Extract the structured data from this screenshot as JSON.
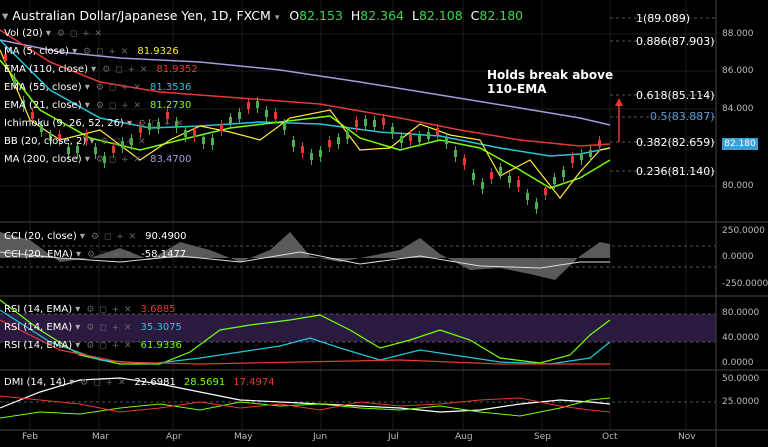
{
  "header": {
    "symbol": "Australian Dollar/Japanese Yen, 1D, FXCM",
    "o_label": "O",
    "o": "82.153",
    "h_label": "H",
    "h": "82.364",
    "l_label": "L",
    "l": "82.108",
    "c_label": "C",
    "c": "82.180"
  },
  "indicators": [
    {
      "label": "Vol (20)",
      "value": ""
    },
    {
      "label": "MA (5, close)",
      "value": "81.9326",
      "color": "#ffeb3b"
    },
    {
      "label": "EMA (110, close)",
      "value": "81.9352",
      "color": "#e53935"
    },
    {
      "label": "EMA (55, close)",
      "value": "81.3536",
      "color": "#26c6da"
    },
    {
      "label": "EMA (21, close)",
      "value": "81.2730",
      "color": "#76ff03"
    },
    {
      "label": "Ichimoku (9, 26, 52, 26)",
      "value": ""
    },
    {
      "label": "BB (20, close, 2)",
      "value": ""
    },
    {
      "label": "MA (200, close)",
      "value": "83.4700",
      "color": "#9e9edc"
    }
  ],
  "controls": "⚙ ◻ + ✕",
  "fib": [
    {
      "label": "1(89.089)",
      "color": "#ffffff"
    },
    {
      "label": "0.886(87.903)",
      "color": "#ffffff"
    },
    {
      "label": "0.618(85.114)",
      "color": "#ffffff"
    },
    {
      "label": "0.5(83.887)",
      "color": "#5b9bd5"
    },
    {
      "label": "0.382(82.659)",
      "color": "#ffffff"
    },
    {
      "label": "0.236(81.140)",
      "color": "#ffffff"
    }
  ],
  "annotation": {
    "line1": "Holds break above",
    "line2": "110-EMA"
  },
  "price_axis": [
    "88.000",
    "86.000",
    "84.000",
    "80.000"
  ],
  "price_badge": "82.180",
  "cci": {
    "l1": "CCI (20, close)",
    "v1": "90.4900",
    "l2": "CCI (20, EMA)",
    "v2": "-58.1477",
    "axis": [
      "250.0000",
      "0.0000",
      "-250.0000"
    ]
  },
  "rsi": {
    "l1": "RSI (14, EMA)",
    "v1": "3.6885",
    "c1": "#e53935",
    "l2": "RSI (14, EMA)",
    "v2": "35.3075",
    "c2": "#26c6da",
    "l3": "RSI (14, EMA)",
    "v3": "61.9336",
    "c3": "#76ff03",
    "axis": [
      "80.0000",
      "40.0000",
      "0.0000"
    ]
  },
  "dmi": {
    "label": "DMI (14, 14)",
    "v1": "22.6981",
    "c1": "#ffffff",
    "v2": "28.5691",
    "c2": "#76ff03",
    "v3": "17.4974",
    "c3": "#e53935",
    "axis": [
      "50.0000",
      "25.0000"
    ]
  },
  "months": [
    "Feb",
    "Mar",
    "Apr",
    "May",
    "Jun",
    "Jul",
    "Aug",
    "Sep",
    "Oct",
    "Nov"
  ]
}
